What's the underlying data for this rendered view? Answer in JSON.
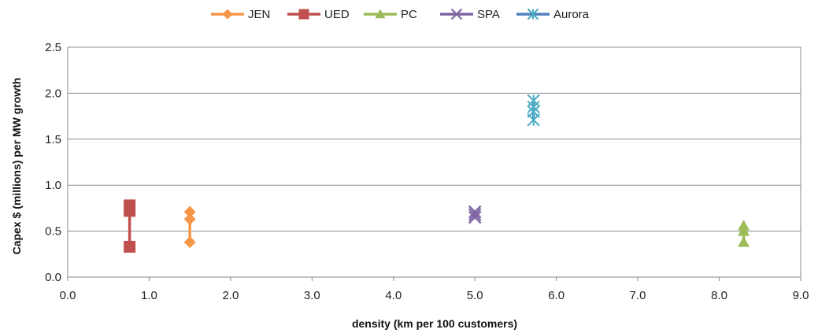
{
  "chart_data": {
    "type": "scatter",
    "title": "",
    "xlabel": "density (km per 100 customers)",
    "ylabel": "Capex $ (millions)  per MW growth",
    "xlim": [
      0,
      9
    ],
    "ylim": [
      0,
      2.5
    ],
    "x_ticks": [
      "0.0",
      "1.0",
      "2.0",
      "3.0",
      "4.0",
      "5.0",
      "6.0",
      "7.0",
      "8.0",
      "9.0"
    ],
    "y_ticks": [
      "0.0",
      "0.5",
      "1.0",
      "1.5",
      "2.0",
      "2.5"
    ],
    "grid": "horizontal",
    "legend_position": "top",
    "series": [
      {
        "name": "JEN",
        "color": "#F79646",
        "marker": "diamond",
        "points": [
          [
            1.5,
            0.38
          ],
          [
            1.5,
            0.63
          ],
          [
            1.5,
            0.71
          ]
        ]
      },
      {
        "name": "UED",
        "color": "#C0504D",
        "marker": "square",
        "points": [
          [
            0.76,
            0.33
          ],
          [
            0.76,
            0.72
          ],
          [
            0.76,
            0.78
          ]
        ]
      },
      {
        "name": "PC",
        "color": "#9BBB59",
        "marker": "triangle",
        "points": [
          [
            8.3,
            0.38
          ],
          [
            8.3,
            0.5
          ],
          [
            8.3,
            0.56
          ]
        ]
      },
      {
        "name": "SPA",
        "color": "#8064A2",
        "marker": "x",
        "points": [
          [
            5.0,
            0.65
          ],
          [
            5.0,
            0.68
          ],
          [
            5.0,
            0.71
          ]
        ]
      },
      {
        "name": "Aurora",
        "color": "#4BACC6",
        "line_color": "#4F81BD",
        "marker": "star",
        "points": [
          [
            5.72,
            1.71
          ],
          [
            5.72,
            1.8
          ],
          [
            5.72,
            1.85
          ],
          [
            5.72,
            1.92
          ]
        ]
      }
    ]
  }
}
